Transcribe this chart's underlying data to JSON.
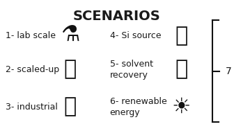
{
  "title": "SCENARIOS",
  "title_fontsize": 14,
  "title_fontweight": "bold",
  "background_color": "#ffffff",
  "text_color": "#1a1a1a",
  "items_left": [
    {
      "label": "1- lab scale",
      "icon": "⚗",
      "icon_font": "Segoe UI Emoji",
      "row": 0
    },
    {
      "label": "2- scaled-up",
      "icon": "🛙",
      "icon_font": "Segoe UI Emoji",
      "row": 1
    },
    {
      "label": "3- industrial",
      "icon": "🏭",
      "icon_font": "Segoe UI Emoji",
      "row": 2
    }
  ],
  "items_right": [
    {
      "label": "4- Si source",
      "icon": "💎",
      "icon_font": "Segoe UI Emoji",
      "row": 0
    },
    {
      "label": "5- solvent\nrecovery",
      "icon": "💧",
      "icon_font": "Segoe UI Emoji",
      "row": 1
    },
    {
      "label": "6- renewable\nenergy",
      "icon": "☀",
      "icon_font": "Segoe UI Emoji",
      "row": 2
    }
  ],
  "bracket_label": "7",
  "figsize": [
    3.36,
    1.89
  ],
  "dpi": 100
}
